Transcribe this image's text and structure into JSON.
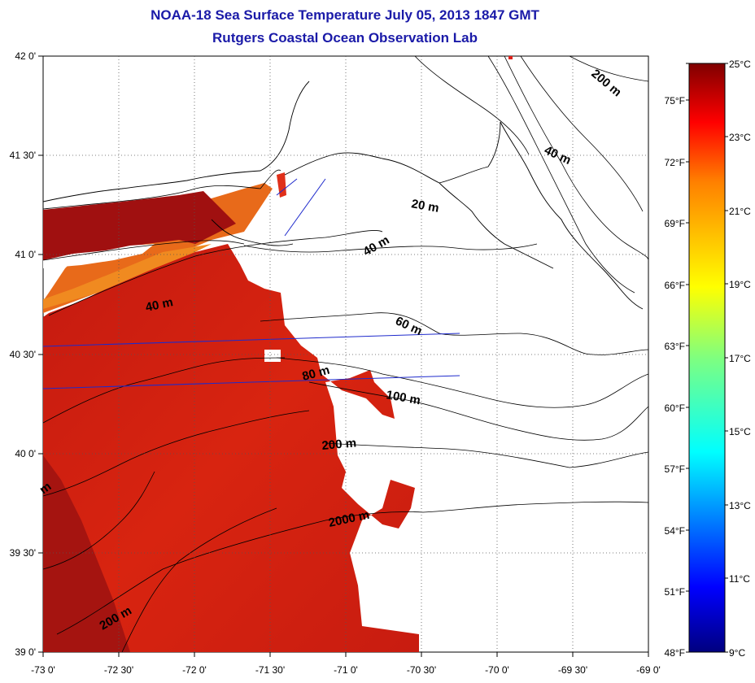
{
  "title": "NOAA-18 Sea Surface Temperature July 05, 2013 1847 GMT",
  "subtitle": "Rutgers Coastal Ocean Observation Lab",
  "map": {
    "lon_range": [
      -73.0,
      -69.0
    ],
    "lat_range": [
      39.0,
      42.0
    ],
    "lon_ticks": [
      "-73 0'",
      "-72 30'",
      "-72 0'",
      "-71 30'",
      "-71 0'",
      "-70 30'",
      "-70 0'",
      "-69 30'",
      "-69 0'"
    ],
    "lat_ticks": [
      "42 0'",
      "41 30'",
      "41 0'",
      "40 30'",
      "40 0'",
      "39 30'",
      "39 0'"
    ],
    "grid": "dotted",
    "contour_labels": [
      "200 m",
      "40 m",
      "20 m",
      "40 m",
      "40 m",
      "60 m",
      "80 m",
      "100 m",
      "200 m",
      "2000 m",
      "200 m",
      "m"
    ]
  },
  "colorbar": {
    "range_c": [
      9,
      25
    ],
    "celsius_labels": [
      "25°C",
      "23°C",
      "21°C",
      "19°C",
      "17°C",
      "15°C",
      "13°C",
      "11°C",
      "9°C"
    ],
    "fahrenheit_labels": [
      "75°F",
      "72°F",
      "69°F",
      "66°F",
      "63°F",
      "60°F",
      "57°F",
      "54°F",
      "51°F",
      "48°F"
    ],
    "colors": [
      "#00007f",
      "#0000ff",
      "#007fff",
      "#00ffff",
      "#7fff7f",
      "#ffff00",
      "#ff7f00",
      "#ff0000",
      "#7f0000"
    ]
  },
  "colors": {
    "title": "#1a1aa8",
    "sst_warm_dark": "#9b0d0d",
    "sst_red": "#d8200c",
    "sst_orange": "#e8761a",
    "transect": "#1e2acc"
  }
}
